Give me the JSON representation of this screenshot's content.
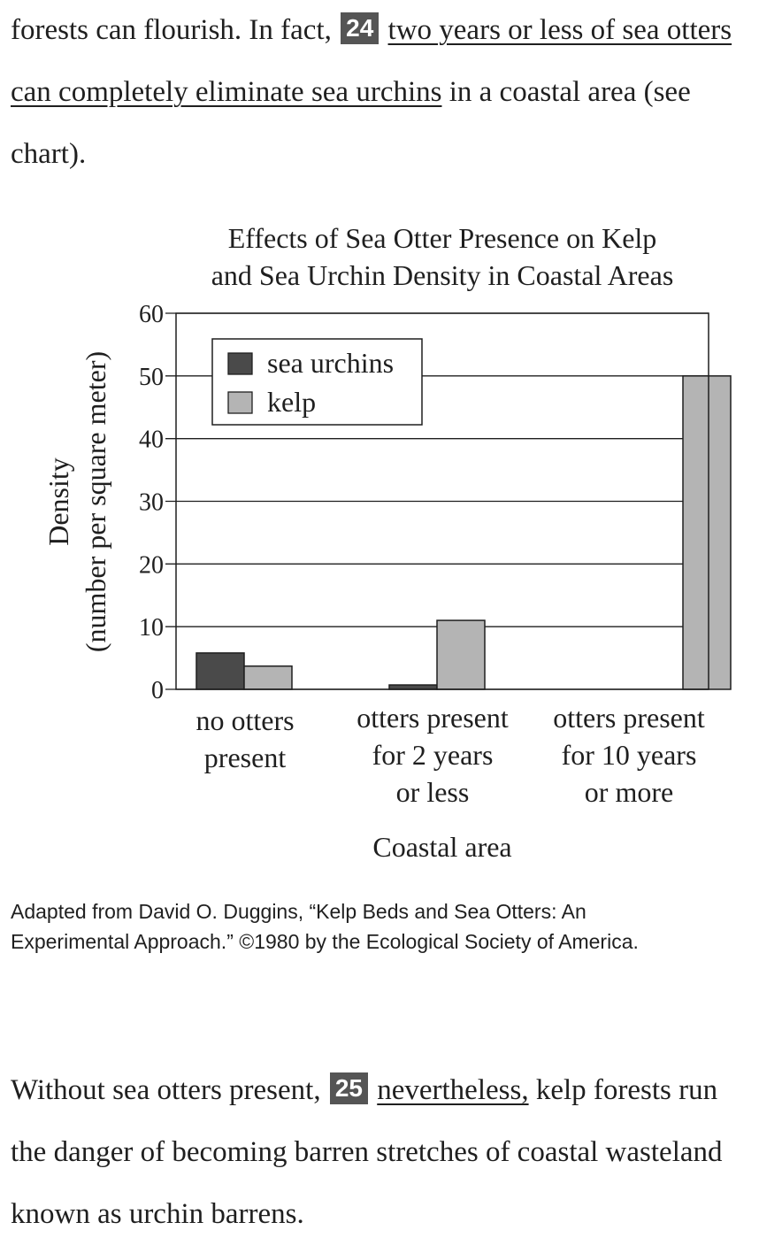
{
  "passage": {
    "p1_before": "forests can flourish. In fact,",
    "p1_q_number": "24",
    "p1_underlined": "two years or less of sea otters can completely eliminate sea urchins",
    "p1_after": "in a coastal area (see chart).",
    "p2_before": "Without sea otters present,",
    "p2_q_number": "25",
    "p2_underlined": "nevertheless,",
    "p2_after": "kelp forests run the danger of becoming barren stretches of coastal wasteland known as urchin barrens."
  },
  "chart_data": {
    "type": "bar",
    "title_lines": [
      "Effects of Sea Otter Presence on Kelp",
      "and Sea Urchin Density in Coastal Areas"
    ],
    "categories": [
      [
        "no otters",
        "present"
      ],
      [
        "otters present",
        "for 2 years",
        "or less"
      ],
      [
        "otters present",
        "for 10 years",
        "or more"
      ]
    ],
    "series": [
      {
        "name": "sea urchins",
        "color": "#4a4a4a",
        "values": [
          5.8,
          0.7,
          0
        ]
      },
      {
        "name": "kelp",
        "color": "#b4b4b4",
        "values": [
          3.7,
          11,
          50
        ]
      }
    ],
    "xlabel": "Coastal area",
    "ylabel_lines": [
      "Density",
      "(number per square meter)"
    ],
    "ylim": [
      0,
      60
    ],
    "yticks": [
      0,
      10,
      20,
      30,
      40,
      50,
      60
    ],
    "grid": true,
    "legend_position": "top-left"
  },
  "credit": {
    "line1": "Adapted from David O. Duggins, “Kelp Beds and Sea Otters: An",
    "line2": "Experimental Approach.” ©1980 by the Ecological Society of America."
  }
}
